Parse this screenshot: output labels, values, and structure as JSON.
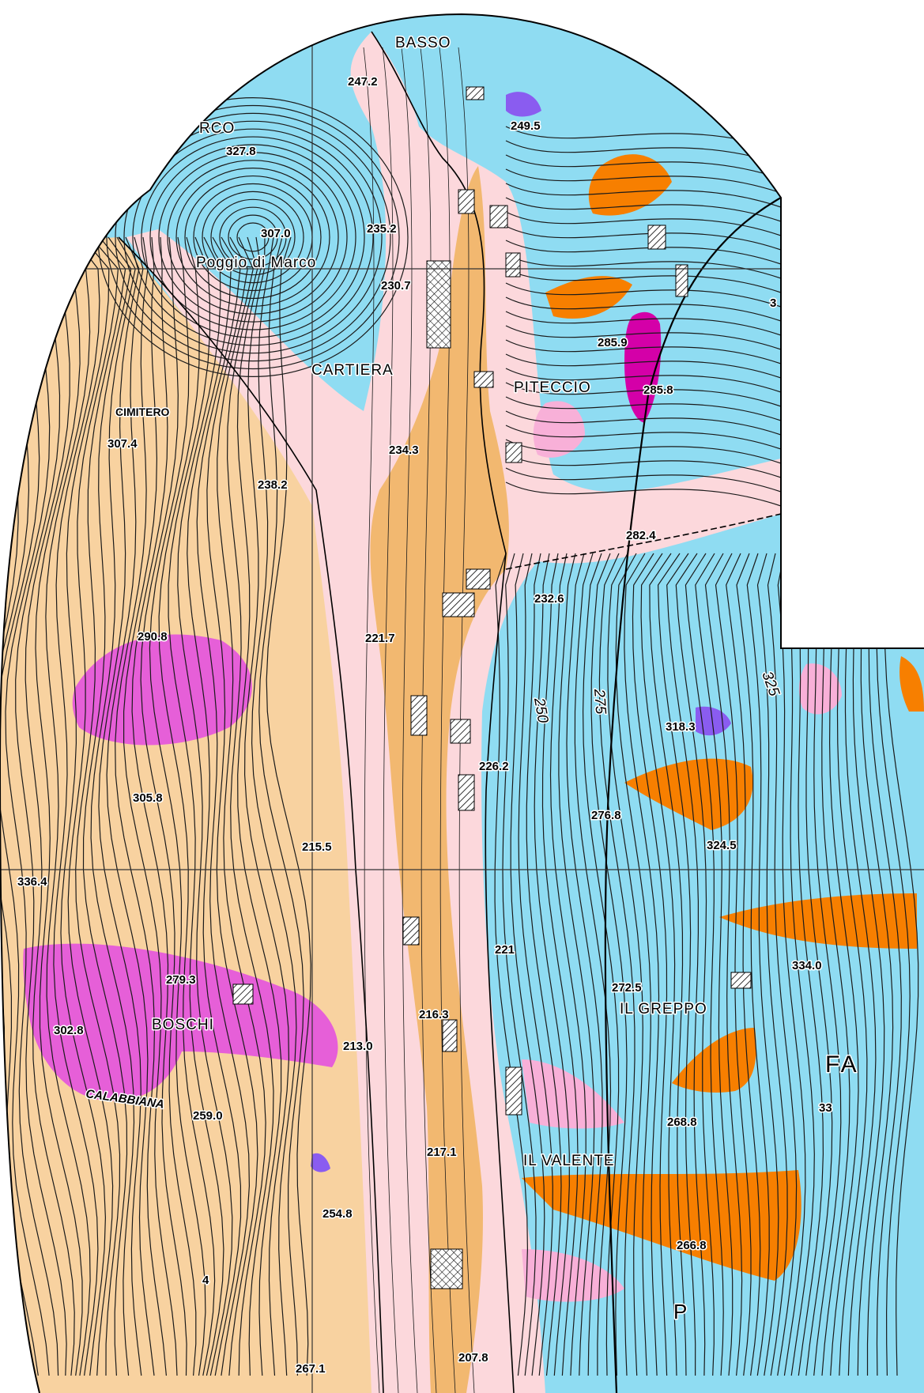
{
  "map": {
    "colors": {
      "cyan": "#8fdcf2",
      "tan": "#f8d2a0",
      "pink_light": "#fcd8dc",
      "orange": "#f77f00",
      "magenta": "#e65fd8",
      "magenta_dark": "#d400a8",
      "orange_tan": "#f2b870",
      "violet": "#8a5cf0",
      "pink_mid": "#f8b0d8"
    },
    "place_names": [
      {
        "id": "basso",
        "text": "BASSO"
      },
      {
        "id": "marco",
        "text": "RCO"
      },
      {
        "id": "poggio",
        "text": "Poggio  di  Marco"
      },
      {
        "id": "cartiera",
        "text": "CARTIERA"
      },
      {
        "id": "piteccio",
        "text": "PITECCIO"
      },
      {
        "id": "cimitero",
        "text": "CIMITERO"
      },
      {
        "id": "boschi",
        "text": "BOSCHI"
      },
      {
        "id": "calabbiana",
        "text": "CALABBIANA"
      },
      {
        "id": "greppo",
        "text": "IL  GREPPO"
      },
      {
        "id": "valente",
        "text": "IL VALENTE"
      },
      {
        "id": "fa",
        "text": "FA"
      },
      {
        "id": "p",
        "text": "P"
      }
    ],
    "elevations": [
      "247.2",
      "249.5",
      "327.8",
      "307.0",
      "235.2",
      "230.7",
      "285.9",
      "285.8",
      "307.4",
      "234.3",
      "238.2",
      "282.4",
      "232.6",
      "221.7",
      "290.8",
      "318.3",
      "226.2",
      "305.8",
      "276.8",
      "324.5",
      "215.5",
      "336.4",
      "221",
      "334.0",
      "279.3",
      "272.5",
      "216.3",
      "302.8",
      "213.0",
      "268.8",
      "259.0",
      "217.1",
      "254.8",
      "266.8",
      "207.8",
      "267.1",
      "33",
      "3",
      "4"
    ],
    "contour_labels": [
      "250",
      "275",
      "325"
    ]
  }
}
